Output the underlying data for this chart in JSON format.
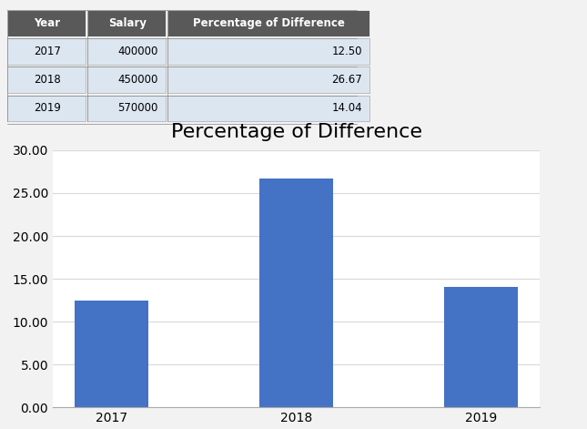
{
  "title": "Percentage of Difference",
  "categories": [
    "2017",
    "2018",
    "2019"
  ],
  "values": [
    12.5,
    26.67,
    14.04
  ],
  "bar_color": "#4472C4",
  "yticks": [
    0.0,
    5.0,
    10.0,
    15.0,
    20.0,
    25.0,
    30.0
  ],
  "ylim": [
    0,
    30
  ],
  "title_fontsize": 16,
  "tick_fontsize": 10,
  "background_color": "#FFFFFF",
  "grid_color": "#D9D9D9",
  "table_header_color": "#595959",
  "table_header_text_color": "#FFFFFF",
  "table_data_bg": "#DCE6F1",
  "table_years": [
    2017,
    2018,
    2019
  ],
  "table_salaries": [
    400000,
    450000,
    570000
  ],
  "table_percentages": [
    12.5,
    26.67,
    14.04
  ],
  "fig_bg": "#F2F2F2"
}
